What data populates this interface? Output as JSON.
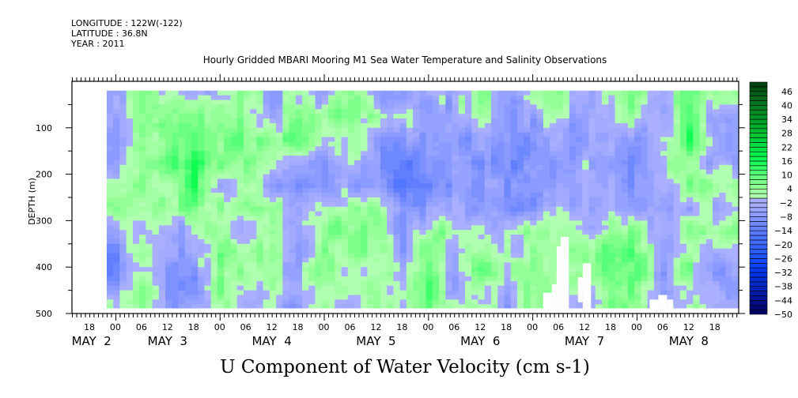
{
  "header": {
    "longitude": "LONGITUDE : 122W(-122)",
    "latitude": "LATITUDE : 36.8N",
    "year": "YEAR : 2011"
  },
  "chart_data": {
    "type": "heatmap",
    "title": "Hourly Gridded MBARI Mooring M1 Sea Water Temperature and Salinity Observations",
    "xlabel": "U Component of Water Velocity (cm s-1)",
    "ylabel": "DEPTH (m)",
    "x_units": "hours since May 3 2011 00:00",
    "xlim": [
      -10,
      143.5
    ],
    "ylim": [
      500,
      0
    ],
    "y_reversed": true,
    "yticks": [
      100,
      200,
      300,
      400,
      500
    ],
    "yticklabels": [
      "100",
      "200",
      "300",
      "400",
      "500"
    ],
    "xticks": [
      -6,
      0,
      6,
      12,
      18,
      24,
      30,
      36,
      42,
      48,
      54,
      60,
      66,
      72,
      78,
      84,
      90,
      96,
      102,
      108,
      114,
      120,
      126,
      132,
      138
    ],
    "xticklabels": [
      "18",
      "00",
      "06",
      "12",
      "18",
      "00",
      "06",
      "12",
      "18",
      "00",
      "06",
      "12",
      "18",
      "00",
      "06",
      "12",
      "18",
      "00",
      "06",
      "12",
      "18",
      "00",
      "06",
      "12",
      "18"
    ],
    "day_labels": [
      {
        "hour": -5.5,
        "label": "MAY  2"
      },
      {
        "hour": 12,
        "label": "MAY  3"
      },
      {
        "hour": 36,
        "label": "MAY  4"
      },
      {
        "hour": 60,
        "label": "MAY  5"
      },
      {
        "hour": 84,
        "label": "MAY  6"
      },
      {
        "hour": 108,
        "label": "MAY  7"
      },
      {
        "hour": 132,
        "label": "MAY  8"
      }
    ],
    "colorbar": {
      "min": -50,
      "max": 50,
      "step": 2,
      "labels": [
        "46",
        "40",
        "34",
        "28",
        "22",
        "16",
        "10",
        "4",
        "-2",
        "-8",
        "-14",
        "-20",
        "-26",
        "-32",
        "-38",
        "-44",
        "-50"
      ]
    },
    "data_time_range": [
      -2,
      143.5
    ],
    "data_depth_range": [
      20,
      488
    ],
    "grid_times": [
      0,
      6,
      12,
      18,
      24,
      30,
      36,
      42,
      48,
      54,
      60,
      66,
      72,
      78,
      84,
      90,
      96,
      102,
      108,
      114,
      120,
      126,
      132,
      138
    ],
    "grid_depths": [
      25,
      75,
      125,
      175,
      225,
      275,
      325,
      375,
      425,
      475
    ],
    "grid_values_by_time": [
      [
        -4,
        -4,
        -8,
        -4,
        2,
        2,
        -2,
        -10,
        -8,
        2
      ],
      [
        6,
        4,
        4,
        8,
        6,
        4,
        -2,
        4,
        2,
        4
      ],
      [
        -2,
        4,
        6,
        8,
        4,
        2,
        -6,
        -6,
        -6,
        -4
      ],
      [
        -4,
        6,
        10,
        14,
        14,
        6,
        -2,
        -4,
        -8,
        -4
      ],
      [
        -2,
        4,
        6,
        4,
        -2,
        2,
        4,
        8,
        6,
        4
      ],
      [
        6,
        4,
        8,
        6,
        2,
        2,
        -2,
        4,
        2,
        -2
      ],
      [
        -6,
        -2,
        6,
        -2,
        -4,
        4,
        6,
        6,
        4,
        -2
      ],
      [
        2,
        6,
        10,
        -2,
        -6,
        -4,
        -6,
        -8,
        -6,
        -6
      ],
      [
        -4,
        4,
        -4,
        -6,
        -6,
        4,
        6,
        8,
        10,
        4
      ],
      [
        8,
        10,
        2,
        4,
        -6,
        4,
        6,
        4,
        -2,
        -4
      ],
      [
        -4,
        2,
        -6,
        -8,
        -6,
        6,
        8,
        4,
        6,
        4
      ],
      [
        -6,
        2,
        -8,
        -14,
        -16,
        -8,
        -6,
        -4,
        -4,
        -2
      ],
      [
        -2,
        -6,
        -8,
        -10,
        -14,
        -6,
        4,
        8,
        10,
        8
      ],
      [
        -2,
        -4,
        -4,
        -4,
        -4,
        -2,
        4,
        -2,
        -4,
        -2
      ],
      [
        8,
        6,
        -6,
        -8,
        -6,
        -4,
        -2,
        6,
        8,
        4
      ],
      [
        -6,
        -8,
        -6,
        -8,
        -8,
        -6,
        -4,
        -2,
        -4,
        -6
      ],
      [
        2,
        -6,
        -10,
        -12,
        -10,
        -8,
        4,
        6,
        8,
        4
      ],
      [
        6,
        4,
        -4,
        -8,
        -8,
        2,
        4,
        4,
        4,
        4
      ],
      [
        -4,
        -6,
        -6,
        -4,
        -6,
        -4,
        -2,
        4,
        4,
        -4
      ],
      [
        4,
        2,
        -4,
        -6,
        -4,
        -4,
        6,
        8,
        6,
        4
      ],
      [
        8,
        2,
        -8,
        -8,
        -6,
        -4,
        4,
        10,
        10,
        6
      ],
      [
        -4,
        -4,
        -4,
        -2,
        -4,
        -6,
        -2,
        -2,
        -4,
        -4
      ],
      [
        8,
        10,
        14,
        6,
        4,
        -2,
        4,
        4,
        6,
        4
      ],
      [
        2,
        -4,
        -6,
        -6,
        4,
        -4,
        4,
        -4,
        -6,
        -4
      ]
    ],
    "missing_data_regions": [
      [
        98.5,
        100.5,
        455,
        490
      ],
      [
        100.5,
        101.6,
        437,
        490
      ],
      [
        101.6,
        102.5,
        355,
        490
      ],
      [
        102.5,
        104.4,
        335,
        490
      ],
      [
        106.5,
        107.6,
        422,
        476
      ],
      [
        107.6,
        109.5,
        392,
        490
      ],
      [
        123,
        125,
        470,
        490
      ],
      [
        125,
        127,
        460,
        490
      ],
      [
        127,
        128.4,
        470,
        490
      ]
    ],
    "color_stops": [
      [
        -50,
        "#000055"
      ],
      [
        -44,
        "#001090"
      ],
      [
        -38,
        "#0025c0"
      ],
      [
        -32,
        "#0035ee"
      ],
      [
        -26,
        "#1a4fff"
      ],
      [
        -20,
        "#3d66ff"
      ],
      [
        -14,
        "#5c7cff"
      ],
      [
        -8,
        "#8898ff"
      ],
      [
        -2,
        "#aab0ff"
      ],
      [
        0,
        "#b4ffb4"
      ],
      [
        4,
        "#99ff99"
      ],
      [
        10,
        "#5cff7a"
      ],
      [
        16,
        "#11ff55"
      ],
      [
        22,
        "#00e040"
      ],
      [
        28,
        "#00c030"
      ],
      [
        34,
        "#009a28"
      ],
      [
        40,
        "#007a1e"
      ],
      [
        46,
        "#005512"
      ],
      [
        50,
        "#004010"
      ]
    ]
  }
}
